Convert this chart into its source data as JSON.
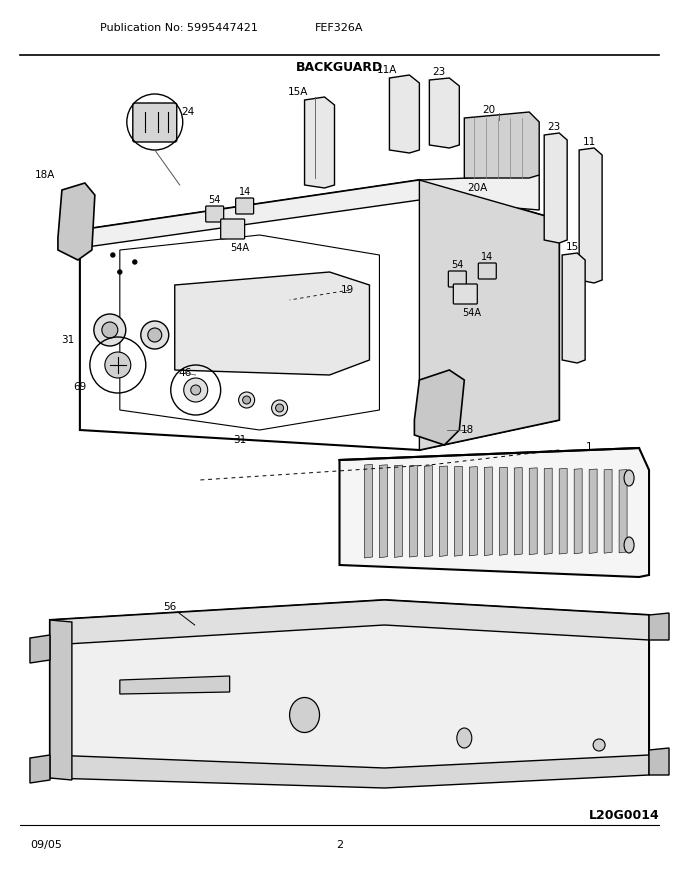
{
  "title": "BACKGUARD",
  "pub_no": "Publication No: 5995447421",
  "model": "FEF326A",
  "page": "2",
  "date": "09/05",
  "diagram_id": "L20G0014",
  "bg_color": "#ffffff",
  "line_color": "#000000",
  "figsize": [
    6.8,
    8.8
  ],
  "dpi": 100
}
